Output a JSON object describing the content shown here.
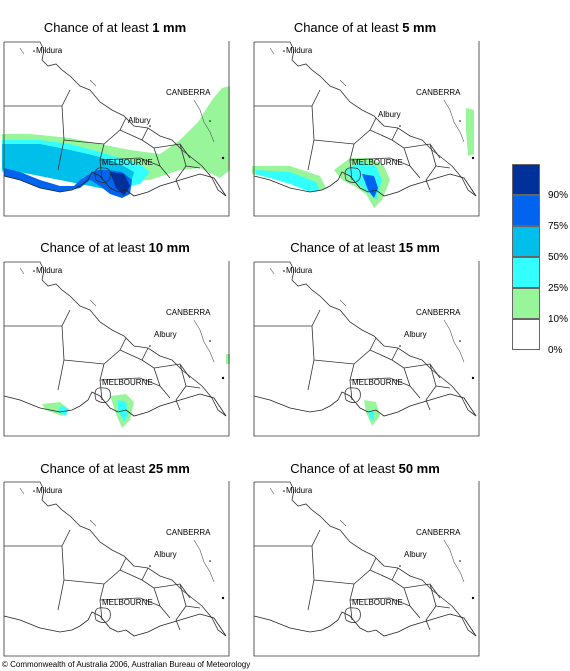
{
  "panels": [
    {
      "prefix": "Chance of at least ",
      "amount": "1 mm"
    },
    {
      "prefix": "Chance of at least ",
      "amount": "5 mm"
    },
    {
      "prefix": "Chance of at least ",
      "amount": "10 mm"
    },
    {
      "prefix": "Chance of at least ",
      "amount": "15 mm"
    },
    {
      "prefix": "Chance of at least ",
      "amount": "25 mm"
    },
    {
      "prefix": "Chance of at least ",
      "amount": "50 mm"
    }
  ],
  "places": {
    "mildura": "Mildura",
    "canberra": "CANBERRA",
    "albury": "Albury",
    "melbourne": "MELBOURNE"
  },
  "legend": {
    "labels": [
      "90%",
      "75%",
      "50%",
      "25%",
      "10%",
      "0%"
    ],
    "colors": [
      "#00309a",
      "#0064ee",
      "#00bfea",
      "#33ffff",
      "#99f59a",
      "#ffffff"
    ]
  },
  "credit": "© Commonwealth of Australia 2006, Australian Bureau of Meteorology"
}
